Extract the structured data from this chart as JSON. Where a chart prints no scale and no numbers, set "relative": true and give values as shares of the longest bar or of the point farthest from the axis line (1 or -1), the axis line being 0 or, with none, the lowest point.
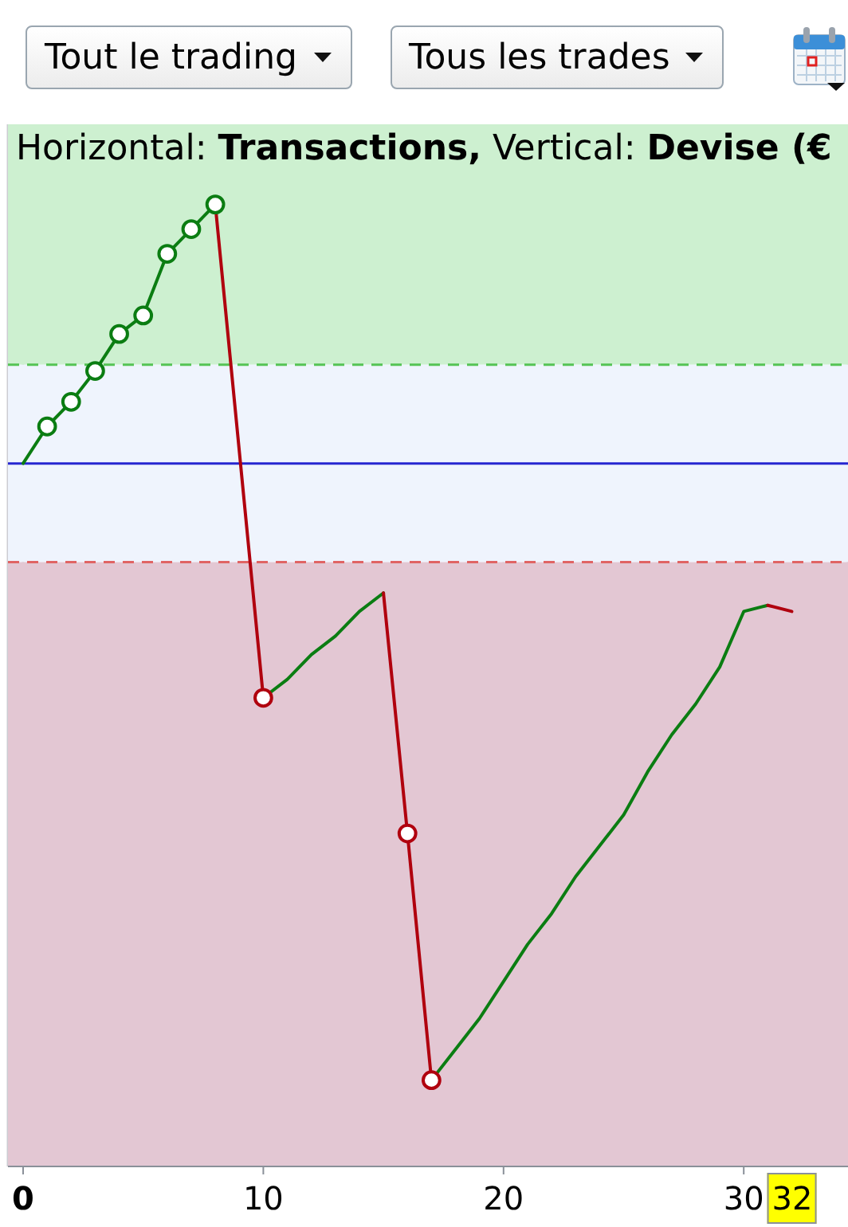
{
  "chart_data": {
    "type": "line",
    "title": "Horizontal: Transactions, Vertical: Devise (€",
    "relative": true,
    "xlim": [
      -0.63,
      34.34
    ],
    "xticks": [
      0,
      10,
      20,
      30
    ],
    "grid": "x",
    "annotations": [
      "Tout le trading",
      "Tous les trades",
      "32"
    ],
    "bands": [
      {
        "axis": "y",
        "from": 0.16,
        "to": 0.55,
        "color": "#cdf0d0"
      },
      {
        "axis": "y",
        "from": -0.16,
        "to": 0.16,
        "color": "#eff4fd"
      },
      {
        "axis": "y",
        "from": -1.14,
        "to": -0.16,
        "color": "#e3c7d3"
      }
    ],
    "ref_lines": [
      {
        "axis": "y",
        "value": 0.16,
        "color": "#55c455",
        "line_style": "dashed"
      },
      {
        "axis": "y",
        "value": 0,
        "color": "#2626d0",
        "line_style": "solid"
      },
      {
        "axis": "y",
        "value": -0.16,
        "color": "#e06464",
        "line_style": "dashed"
      }
    ],
    "series": [
      {
        "color": "#0b7d12",
        "x": [
          0,
          1,
          2,
          3,
          4,
          5,
          6,
          7,
          8
        ],
        "values": [
          0,
          0.06,
          0.1,
          0.15,
          0.21,
          0.24,
          0.34,
          0.38,
          0.42
        ]
      },
      {
        "color": "#b0000e",
        "x": [
          8,
          10
        ],
        "values": [
          0.42,
          -0.38
        ]
      },
      {
        "color": "#0b7d12",
        "x": [
          10,
          11,
          12,
          13,
          14,
          15
        ],
        "values": [
          -0.38,
          -0.35,
          -0.31,
          -0.28,
          -0.24,
          -0.21
        ]
      },
      {
        "color": "#b0000e",
        "x": [
          15,
          16,
          17
        ],
        "values": [
          -0.21,
          -0.6,
          -1
        ]
      },
      {
        "color": "#0b7d12",
        "x": [
          17,
          18,
          19,
          20,
          21,
          22,
          23,
          24,
          25,
          26,
          27,
          28,
          29,
          30,
          31
        ],
        "values": [
          -1,
          -0.95,
          -0.9,
          -0.84,
          -0.78,
          -0.73,
          -0.67,
          -0.62,
          -0.57,
          -0.5,
          -0.44,
          -0.39,
          -0.33,
          -0.24,
          -0.23
        ]
      },
      {
        "color": "#b0000e",
        "x": [
          31,
          32
        ],
        "values": [
          -0.23,
          -0.24
        ]
      },
      {
        "type": "scatter",
        "color": "#0b7d12",
        "marker": "circle",
        "x": [
          1,
          2,
          3,
          4,
          5,
          6,
          7,
          8
        ],
        "values": [
          0.06,
          0.1,
          0.15,
          0.21,
          0.24,
          0.34,
          0.38,
          0.42
        ]
      },
      {
        "type": "scatter",
        "color": "#b0000e",
        "marker": "circle",
        "x": [
          10,
          16,
          17
        ],
        "values": [
          -0.38,
          -0.6,
          -1
        ]
      }
    ]
  }
}
